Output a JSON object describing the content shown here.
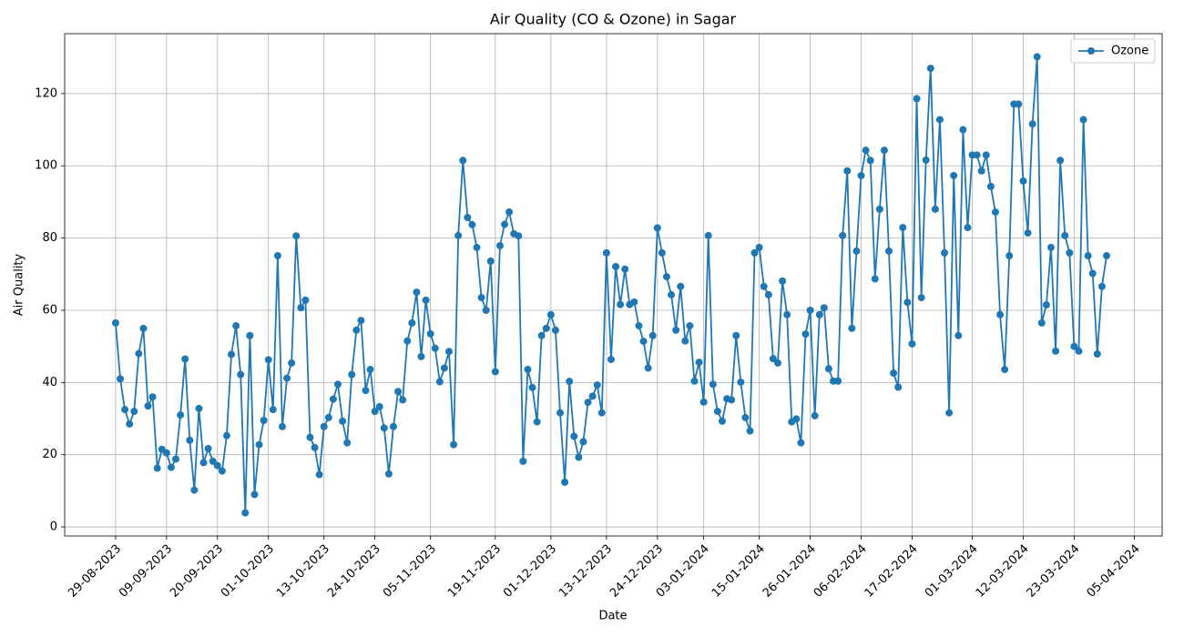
{
  "chart_data": {
    "type": "line",
    "title": "Air Quality (CO & Ozone) in Sagar",
    "x_label": "Date",
    "y_label": "Air Quality",
    "x": [
      "29-08-2023",
      "30-08-2023",
      "31-08-2023",
      "01-09-2023",
      "02-09-2023",
      "03-09-2023",
      "04-09-2023",
      "05-09-2023",
      "06-09-2023",
      "07-09-2023",
      "08-09-2023",
      "09-09-2023",
      "10-09-2023",
      "11-09-2023",
      "12-09-2023",
      "13-09-2023",
      "14-09-2023",
      "15-09-2023",
      "16-09-2023",
      "17-09-2023",
      "18-09-2023",
      "19-09-2023",
      "20-09-2023",
      "21-09-2023",
      "22-09-2023",
      "23-09-2023",
      "24-09-2023",
      "25-09-2023",
      "26-09-2023",
      "27-09-2023",
      "28-09-2023",
      "29-09-2023",
      "30-09-2023",
      "01-10-2023",
      "02-10-2023",
      "03-10-2023",
      "04-10-2023",
      "05-10-2023",
      "06-10-2023",
      "07-10-2023",
      "08-10-2023",
      "09-10-2023",
      "10-10-2023",
      "11-10-2023",
      "12-10-2023",
      "13-10-2023",
      "14-10-2023",
      "15-10-2023",
      "16-10-2023",
      "17-10-2023",
      "18-10-2023",
      "19-10-2023",
      "20-10-2023",
      "21-10-2023",
      "22-10-2023",
      "23-10-2023",
      "24-10-2023",
      "25-10-2023",
      "26-10-2023",
      "27-10-2023",
      "28-10-2023",
      "29-10-2023",
      "30-10-2023",
      "31-10-2023",
      "01-11-2023",
      "02-11-2023",
      "03-11-2023",
      "04-11-2023",
      "05-11-2023",
      "06-11-2023",
      "07-11-2023",
      "08-11-2023",
      "09-11-2023",
      "10-11-2023",
      "11-11-2023",
      "12-11-2023",
      "13-11-2023",
      "14-11-2023",
      "15-11-2023",
      "16-11-2023",
      "17-11-2023",
      "18-11-2023",
      "19-11-2023",
      "20-11-2023",
      "21-11-2023",
      "22-11-2023",
      "23-11-2023",
      "24-11-2023",
      "25-11-2023",
      "26-11-2023",
      "27-11-2023",
      "28-11-2023",
      "29-11-2023",
      "30-11-2023",
      "01-12-2023",
      "02-12-2023",
      "03-12-2023",
      "04-12-2023",
      "05-12-2023",
      "06-12-2023",
      "07-12-2023",
      "08-12-2023",
      "09-12-2023",
      "10-12-2023",
      "11-12-2023",
      "12-12-2023",
      "13-12-2023",
      "14-12-2023",
      "15-12-2023",
      "16-12-2023",
      "17-12-2023",
      "18-12-2023",
      "19-12-2023",
      "20-12-2023",
      "21-12-2023",
      "22-12-2023",
      "23-12-2023",
      "24-12-2023",
      "25-12-2023",
      "26-12-2023",
      "27-12-2023",
      "28-12-2023",
      "29-12-2023",
      "30-12-2023",
      "31-12-2023",
      "01-01-2024",
      "02-01-2024",
      "03-01-2024",
      "04-01-2024",
      "05-01-2024",
      "06-01-2024",
      "07-01-2024",
      "08-01-2024",
      "09-01-2024",
      "10-01-2024",
      "11-01-2024",
      "12-01-2024",
      "13-01-2024",
      "14-01-2024",
      "15-01-2024",
      "16-01-2024",
      "17-01-2024",
      "18-01-2024",
      "19-01-2024",
      "20-01-2024",
      "21-01-2024",
      "22-01-2024",
      "23-01-2024",
      "24-01-2024",
      "25-01-2024",
      "26-01-2024",
      "27-01-2024",
      "28-01-2024",
      "29-01-2024",
      "30-01-2024",
      "31-01-2024",
      "01-02-2024",
      "02-02-2024",
      "03-02-2024",
      "04-02-2024",
      "05-02-2024",
      "06-02-2024",
      "07-02-2024",
      "08-02-2024",
      "09-02-2024",
      "10-02-2024",
      "11-02-2024",
      "12-02-2024",
      "13-02-2024",
      "14-02-2024",
      "15-02-2024",
      "16-02-2024",
      "17-02-2024",
      "18-02-2024",
      "19-02-2024",
      "20-02-2024",
      "21-02-2024",
      "22-02-2024",
      "23-02-2024",
      "24-02-2024",
      "25-02-2024",
      "26-02-2024",
      "27-02-2024",
      "28-02-2024",
      "29-02-2024",
      "01-03-2024",
      "02-03-2024",
      "03-03-2024",
      "04-03-2024",
      "05-03-2024",
      "06-03-2024",
      "07-03-2024",
      "08-03-2024",
      "09-03-2024",
      "10-03-2024",
      "11-03-2024",
      "12-03-2024",
      "13-03-2024",
      "14-03-2024",
      "15-03-2024",
      "16-03-2024",
      "17-03-2024",
      "18-03-2024",
      "19-03-2024",
      "20-03-2024",
      "21-03-2024",
      "22-03-2024",
      "23-03-2024",
      "24-03-2024",
      "25-03-2024",
      "26-03-2024",
      "27-03-2024",
      "28-03-2024",
      "29-03-2024",
      "30-03-2024"
    ],
    "series": [
      {
        "name": "Ozone",
        "color": "#1f77b4",
        "values": [
          56.5,
          41,
          32.5,
          28.5,
          32,
          48,
          55,
          33.5,
          36,
          16.3,
          21.5,
          20.5,
          16.5,
          18.8,
          31,
          46.5,
          24,
          10.2,
          32.8,
          17.8,
          21.7,
          18.2,
          17,
          15.5,
          25.3,
          47.8,
          55.7,
          42.2,
          3.9,
          53,
          9,
          22.8,
          29.5,
          46.3,
          32.5,
          75.1,
          27.8,
          41.2,
          45.4,
          80.6,
          60.7,
          62.8,
          24.8,
          22,
          14.5,
          27.8,
          30.3,
          35.4,
          39.5,
          29.3,
          23.3,
          42.2,
          54.5,
          57.2,
          37.8,
          43.6,
          32,
          33.3,
          27.4,
          14.7,
          27.8,
          37.5,
          35.2,
          51.5,
          56.5,
          65,
          47.2,
          62.8,
          53.5,
          49.5,
          40.2,
          44,
          48.6,
          22.8,
          80.7,
          101.5,
          85.7,
          83.7,
          77.4,
          63.5,
          60,
          73.6,
          43,
          77.9,
          83.8,
          87.2,
          81.2,
          80.6,
          18.2,
          43.6,
          38.6,
          29.1,
          53,
          55,
          58.8,
          54.5,
          31.6,
          12.4,
          40.3,
          25.1,
          19.3,
          23.6,
          34.5,
          36.2,
          39.3,
          31.6,
          75.9,
          46.4,
          72.1,
          61.6,
          71.4,
          61.6,
          62.3,
          55.7,
          51.4,
          44,
          53,
          82.8,
          75.9,
          69.3,
          64.3,
          54.5,
          66.6,
          51.5,
          55.7,
          40.4,
          45.6,
          34.6,
          80.7,
          39.5,
          32,
          29.3,
          35.5,
          35.2,
          53,
          40.1,
          30.3,
          26.6,
          75.9,
          77.4,
          66.6,
          64.3,
          46.6,
          45.4,
          68.1,
          58.8,
          29.1,
          29.9,
          23.3,
          53.4,
          60,
          30.8,
          58.8,
          60.7,
          43.8,
          40.4,
          40.4,
          80.7,
          98.6,
          55,
          76.4,
          97.3,
          104.3,
          101.5,
          68.7,
          88,
          104.3,
          76.4,
          42.6,
          38.7,
          82.9,
          62.2,
          50.7,
          118.6,
          63.5,
          101.6,
          127,
          88,
          112.8,
          75.9,
          31.6,
          97.3,
          53,
          110,
          82.9,
          103,
          103,
          98.6,
          103,
          94.3,
          87.2,
          58.8,
          43.6,
          75.1,
          117.1,
          117.1,
          95.8,
          81.4,
          111.6,
          130.2,
          56.5,
          61.5,
          77.4,
          48.7,
          101.5,
          80.7,
          75.9,
          50,
          48.7,
          112.8,
          75.1,
          70.2,
          47.9,
          66.6,
          75.1
        ]
      }
    ],
    "xlim": [
      "18-08-2023",
      "11-04-2024"
    ],
    "xticks": [
      "29-08-2023",
      "09-09-2023",
      "20-09-2023",
      "01-10-2023",
      "13-10-2023",
      "24-10-2023",
      "05-11-2023",
      "19-11-2023",
      "01-12-2023",
      "13-12-2023",
      "24-12-2023",
      "03-01-2024",
      "15-01-2024",
      "26-01-2024",
      "06-02-2024",
      "17-02-2024",
      "01-03-2024",
      "12-03-2024",
      "23-03-2024",
      "05-04-2024"
    ],
    "ylim": [
      -2.5,
      136.6
    ],
    "yticks": [
      0,
      20,
      40,
      60,
      80,
      100,
      120
    ],
    "grid": true,
    "legend": "upper right"
  }
}
